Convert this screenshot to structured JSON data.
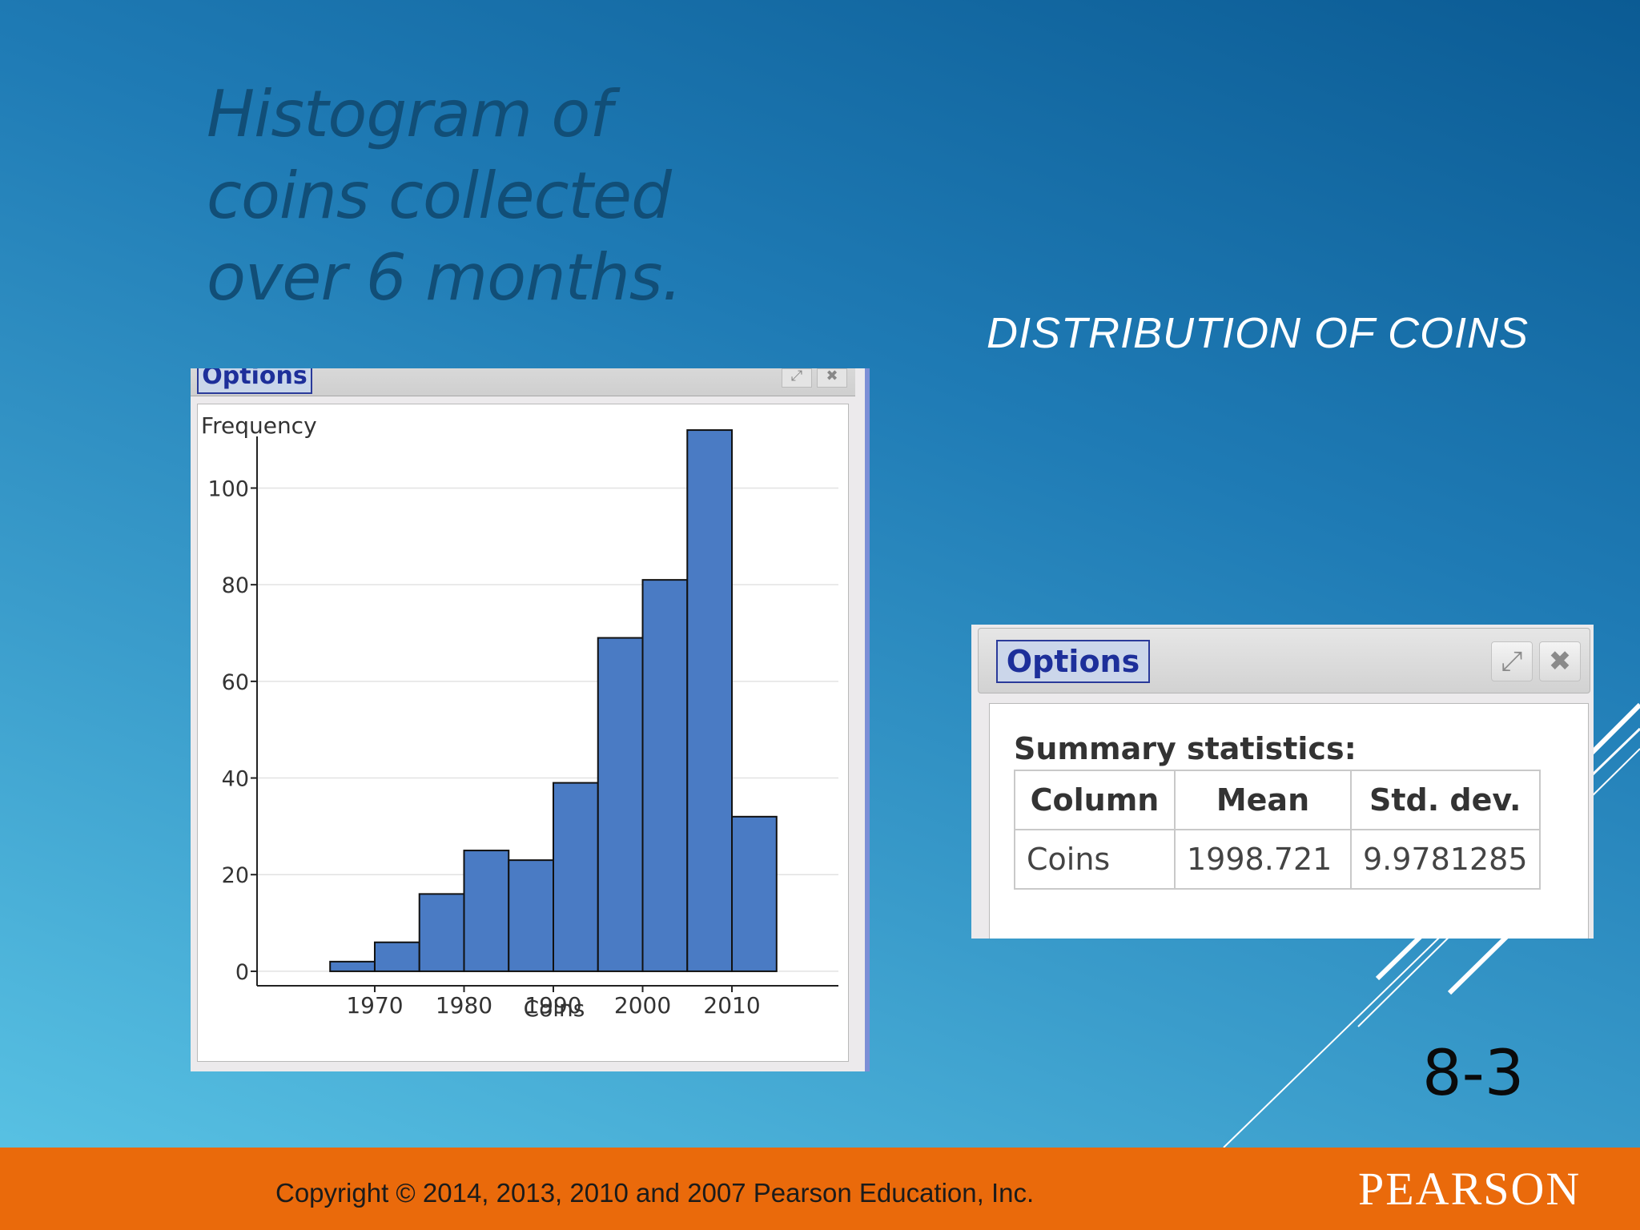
{
  "slide": {
    "title": "Histogram of coins collected over 6 months.",
    "subtitle": "DISTRIBUTION OF COINS",
    "page_number": "8-3",
    "copyright": "Copyright © 2014, 2013, 2010 and 2007 Pearson Education, Inc.",
    "logo": "PEARSON"
  },
  "histogram_panel": {
    "options_label": "Options",
    "expand_icon": "expand-icon",
    "close_icon": "close-icon"
  },
  "stats_panel": {
    "options_label": "Options",
    "expand_icon": "expand-icon",
    "close_icon": "close-icon",
    "heading": "Summary statistics:",
    "columns": [
      "Column",
      "Mean",
      "Std. dev."
    ],
    "rows": [
      [
        "Coins",
        "1998.721",
        "9.9781285"
      ]
    ]
  },
  "chart_data": {
    "type": "bar",
    "ylabel": "Frequency",
    "xlabel": "Coins",
    "bin_edges": [
      1965,
      1970,
      1975,
      1980,
      1985,
      1990,
      1995,
      2000,
      2005,
      2010,
      2015
    ],
    "values": [
      2,
      6,
      16,
      25,
      23,
      39,
      69,
      81,
      112,
      32
    ],
    "xlim": [
      1957,
      2023
    ],
    "ylim": [
      -2,
      114
    ],
    "xticks": [
      1970,
      1980,
      1990,
      2000,
      2010
    ],
    "yticks": [
      0,
      20,
      40,
      60,
      80,
      100
    ],
    "bar_color": "#4a7bc4",
    "grid": true
  },
  "colors": {
    "footer": "#ea6a0b",
    "title": "#114e77",
    "bar": "#4a7bc4"
  }
}
